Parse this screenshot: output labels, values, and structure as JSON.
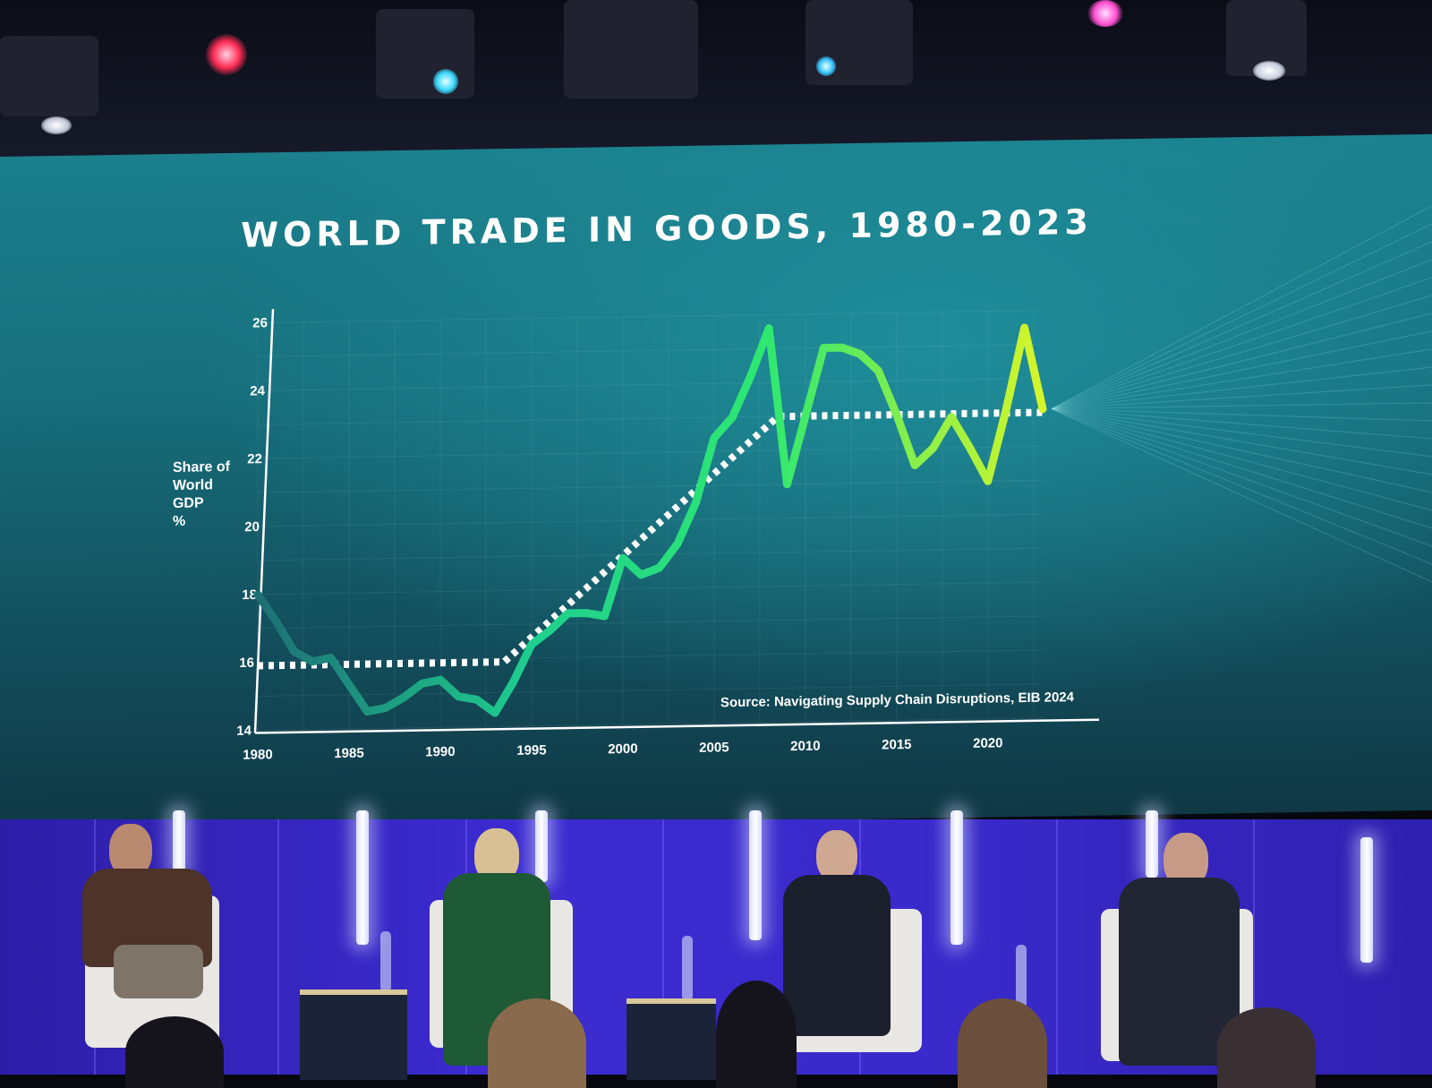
{
  "chart_data": {
    "type": "line",
    "title": "WORLD TRADE IN GOODS, 1980-2023",
    "ylabel": "Share of World GDP %",
    "xlabel": "",
    "source": "Source: Navigating Supply Chain Disruptions, EIB 2024",
    "xlim": [
      1980,
      2023
    ],
    "ylim": [
      14,
      26
    ],
    "x_ticks": [
      1980,
      1985,
      1990,
      1995,
      2000,
      2005,
      2010,
      2015,
      2020
    ],
    "y_ticks": [
      14,
      16,
      18,
      20,
      22,
      24,
      26
    ],
    "grid": true,
    "series": [
      {
        "style": "solid-gradient",
        "x": [
          1980,
          1981,
          1982,
          1983,
          1984,
          1985,
          1986,
          1987,
          1988,
          1989,
          1990,
          1991,
          1992,
          1993,
          1994,
          1995,
          1996,
          1997,
          1998,
          1999,
          2000,
          2001,
          2002,
          2003,
          2004,
          2005,
          2006,
          2007,
          2008,
          2009,
          2010,
          2011,
          2012,
          2013,
          2014,
          2015,
          2016,
          2017,
          2018,
          2019,
          2020,
          2021,
          2022,
          2023
        ],
        "values": [
          18.0,
          17.2,
          16.3,
          16.0,
          16.1,
          15.3,
          14.5,
          14.6,
          14.9,
          15.3,
          15.4,
          14.9,
          14.8,
          14.4,
          15.3,
          16.4,
          16.8,
          17.3,
          17.3,
          17.2,
          18.9,
          18.4,
          18.6,
          19.3,
          20.5,
          22.4,
          23.0,
          24.2,
          25.6,
          21.0,
          23.0,
          25.0,
          25.0,
          24.8,
          24.3,
          23.0,
          21.5,
          22.0,
          22.9,
          22.0,
          21.0,
          23.1,
          25.5,
          23.1
        ]
      },
      {
        "style": "dotted-trend",
        "x": [
          1980,
          1993.5,
          2008.5,
          2023
        ],
        "values": [
          15.9,
          15.9,
          23.0,
          23.0
        ]
      }
    ]
  }
}
